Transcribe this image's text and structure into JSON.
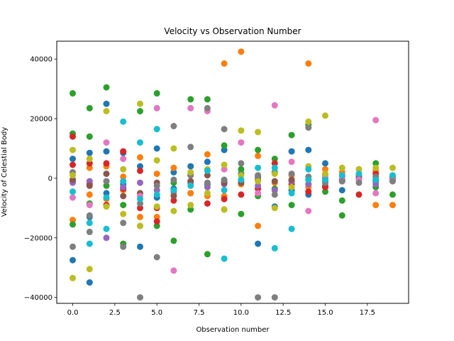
{
  "chart_data": {
    "type": "scatter",
    "title": "Velocity vs Observation Number",
    "xlabel": "Observation number",
    "ylabel": "Velocity of Celestial Body",
    "xlim": [
      -0.95,
      19.95
    ],
    "ylim": [
      -42000,
      46000
    ],
    "xticks": [
      0.0,
      2.5,
      5.0,
      7.5,
      10.0,
      12.5,
      15.0,
      17.5
    ],
    "xtick_labels": [
      "0.0",
      "2.5",
      "5.0",
      "7.5",
      "10.0",
      "12.5",
      "15.0",
      "17.5"
    ],
    "yticks": [
      -40000,
      -20000,
      0,
      20000,
      40000
    ],
    "ytick_labels": [
      "−40000",
      "−20000",
      "0",
      "20000",
      "40000"
    ],
    "grid": false,
    "legend": false,
    "series": [
      {
        "color": "#1f77b4",
        "points": [
          [
            0,
            -27500
          ],
          [
            0,
            6500
          ],
          [
            0,
            -1000
          ],
          [
            1,
            -35000
          ],
          [
            1,
            8500
          ],
          [
            1,
            -13000
          ],
          [
            2,
            25000
          ],
          [
            2,
            9000
          ],
          [
            2,
            -5000
          ],
          [
            3,
            8500
          ],
          [
            3,
            -2000
          ],
          [
            4,
            -23000
          ],
          [
            4,
            4000
          ],
          [
            5,
            10000
          ],
          [
            5,
            -6500
          ],
          [
            6,
            -3500
          ],
          [
            6,
            2000
          ],
          [
            7,
            4000
          ],
          [
            7,
            -5000
          ],
          [
            8,
            5500
          ],
          [
            8,
            -2000
          ],
          [
            9,
            9500
          ],
          [
            9,
            -1000
          ],
          [
            10,
            1500
          ],
          [
            11,
            -22000
          ],
          [
            11,
            500
          ],
          [
            12,
            -9500
          ],
          [
            12,
            2000
          ],
          [
            13,
            9000
          ],
          [
            13,
            -4000
          ],
          [
            14,
            9500
          ],
          [
            14,
            -5500
          ],
          [
            15,
            5000
          ],
          [
            15,
            -2500
          ],
          [
            16,
            -4000
          ],
          [
            17,
            0
          ],
          [
            18,
            -1000
          ],
          [
            19,
            -500
          ]
        ]
      },
      {
        "color": "#ff7f0e",
        "points": [
          [
            0,
            -14000
          ],
          [
            0,
            -500
          ],
          [
            1,
            -5500
          ],
          [
            1,
            3500
          ],
          [
            2,
            -7000
          ],
          [
            2,
            4000
          ],
          [
            3,
            -4000
          ],
          [
            3,
            500
          ],
          [
            4,
            7000
          ],
          [
            4,
            -13000
          ],
          [
            5,
            -13000
          ],
          [
            5,
            1500
          ],
          [
            6,
            -5500
          ],
          [
            6,
            3500
          ],
          [
            7,
            -5000
          ],
          [
            8,
            8000
          ],
          [
            8,
            -6000
          ],
          [
            9,
            38500
          ],
          [
            9,
            -6000
          ],
          [
            10,
            42500
          ],
          [
            10,
            -2000
          ],
          [
            11,
            -16000
          ],
          [
            11,
            7500
          ],
          [
            12,
            -1500
          ],
          [
            13,
            1000
          ],
          [
            14,
            38500
          ],
          [
            14,
            -3000
          ],
          [
            15,
            3000
          ],
          [
            16,
            2000
          ],
          [
            17,
            3000
          ],
          [
            18,
            -9000
          ],
          [
            18,
            2500
          ],
          [
            19,
            -9000
          ]
        ]
      },
      {
        "color": "#2ca02c",
        "points": [
          [
            0,
            28500
          ],
          [
            0,
            15000
          ],
          [
            0,
            -15500
          ],
          [
            1,
            23500
          ],
          [
            1,
            14000
          ],
          [
            1,
            -8500
          ],
          [
            2,
            30500
          ],
          [
            2,
            -2500
          ],
          [
            3,
            -22000
          ],
          [
            3,
            -9000
          ],
          [
            4,
            22500
          ],
          [
            4,
            -16000
          ],
          [
            5,
            28500
          ],
          [
            5,
            -16000
          ],
          [
            6,
            -21000
          ],
          [
            6,
            -1500
          ],
          [
            7,
            26500
          ],
          [
            7,
            -10500
          ],
          [
            8,
            26500
          ],
          [
            8,
            -25500
          ],
          [
            9,
            11000
          ],
          [
            9,
            -10500
          ],
          [
            10,
            -12000
          ],
          [
            10,
            3000
          ],
          [
            11,
            9500
          ],
          [
            11,
            -6000
          ],
          [
            12,
            6500
          ],
          [
            12,
            -3500
          ],
          [
            13,
            14500
          ],
          [
            13,
            -9000
          ],
          [
            14,
            18000
          ],
          [
            14,
            -2000
          ],
          [
            15,
            -4500
          ],
          [
            16,
            -12500
          ],
          [
            16,
            -7500
          ],
          [
            17,
            1000
          ],
          [
            18,
            5000
          ],
          [
            18,
            -3000
          ],
          [
            19,
            -5500
          ]
        ]
      },
      {
        "color": "#d62728",
        "points": [
          [
            0,
            14000
          ],
          [
            0,
            4500
          ],
          [
            1,
            -2000
          ],
          [
            1,
            5000
          ],
          [
            2,
            5000
          ],
          [
            2,
            -9000
          ],
          [
            3,
            9000
          ],
          [
            3,
            -3500
          ],
          [
            4,
            -10000
          ],
          [
            4,
            2500
          ],
          [
            5,
            -10000
          ],
          [
            5,
            -14500
          ],
          [
            6,
            -7500
          ],
          [
            7,
            1000
          ],
          [
            8,
            -8500
          ],
          [
            9,
            -7000
          ],
          [
            10,
            -5500
          ],
          [
            11,
            -3500
          ],
          [
            12,
            5000
          ],
          [
            13,
            -2000
          ],
          [
            14,
            -4500
          ],
          [
            15,
            -3000
          ],
          [
            16,
            -1000
          ],
          [
            17,
            -5500
          ],
          [
            18,
            1500
          ],
          [
            19,
            0
          ]
        ]
      },
      {
        "color": "#9467bd",
        "points": [
          [
            0,
            -1500
          ],
          [
            1,
            -1000
          ],
          [
            2,
            -20000
          ],
          [
            3,
            -3000
          ],
          [
            4,
            -1500
          ],
          [
            5,
            -4000
          ],
          [
            6,
            -4500
          ],
          [
            7,
            -1500
          ],
          [
            8,
            -3000
          ],
          [
            9,
            -2000
          ],
          [
            10,
            -1000
          ],
          [
            11,
            -2500
          ],
          [
            12,
            -4000
          ],
          [
            13,
            -1000
          ],
          [
            14,
            -2000
          ],
          [
            15,
            -1000
          ],
          [
            16,
            -500
          ],
          [
            17,
            500
          ],
          [
            18,
            -2000
          ],
          [
            19,
            -1000
          ]
        ]
      },
      {
        "color": "#8c564b",
        "points": [
          [
            0,
            -500
          ],
          [
            1,
            -2500
          ],
          [
            2,
            1500
          ],
          [
            3,
            -6000
          ],
          [
            4,
            -5000
          ],
          [
            5,
            -1500
          ],
          [
            6,
            -6000
          ],
          [
            7,
            -1000
          ],
          [
            8,
            1000
          ],
          [
            9,
            -1500
          ],
          [
            10,
            -1500
          ],
          [
            11,
            -500
          ],
          [
            12,
            -1000
          ],
          [
            13,
            -500
          ],
          [
            14,
            -500
          ],
          [
            15,
            0
          ],
          [
            16,
            500
          ],
          [
            17,
            0
          ],
          [
            18,
            -500
          ],
          [
            19,
            500
          ]
        ]
      },
      {
        "color": "#e377c2",
        "points": [
          [
            0,
            -6500
          ],
          [
            1,
            -9000
          ],
          [
            2,
            12000
          ],
          [
            3,
            6500
          ],
          [
            4,
            -6000
          ],
          [
            5,
            23500
          ],
          [
            6,
            -31000
          ],
          [
            7,
            23500
          ],
          [
            8,
            22500
          ],
          [
            9,
            3000
          ],
          [
            10,
            12000
          ],
          [
            11,
            -5000
          ],
          [
            12,
            24500
          ],
          [
            13,
            5500
          ],
          [
            14,
            -11000
          ],
          [
            15,
            1000
          ],
          [
            16,
            500
          ],
          [
            17,
            -500
          ],
          [
            18,
            19500
          ],
          [
            18,
            -5000
          ],
          [
            19,
            -500
          ]
        ]
      },
      {
        "color": "#7f7f7f",
        "points": [
          [
            0,
            -23000
          ],
          [
            0,
            2000
          ],
          [
            1,
            -18000
          ],
          [
            1,
            -12500
          ],
          [
            2,
            -1000
          ],
          [
            3,
            -23000
          ],
          [
            3,
            -15000
          ],
          [
            4,
            -40000
          ],
          [
            4,
            -8500
          ],
          [
            5,
            -26500
          ],
          [
            5,
            -2500
          ],
          [
            6,
            17500
          ],
          [
            6,
            -500
          ],
          [
            7,
            10500
          ],
          [
            7,
            1000
          ],
          [
            8,
            23500
          ],
          [
            8,
            -1500
          ],
          [
            9,
            16500
          ],
          [
            9,
            -500
          ],
          [
            10,
            5000
          ],
          [
            11,
            -40000
          ],
          [
            11,
            1000
          ],
          [
            12,
            -40000
          ],
          [
            12,
            -5500
          ],
          [
            13,
            1500
          ],
          [
            14,
            17000
          ],
          [
            14,
            500
          ],
          [
            15,
            -1500
          ],
          [
            16,
            -1000
          ],
          [
            17,
            -1500
          ],
          [
            18,
            500
          ],
          [
            19,
            -1000
          ]
        ]
      },
      {
        "color": "#bcbd22",
        "points": [
          [
            0,
            -33500
          ],
          [
            0,
            9500
          ],
          [
            0,
            1000
          ],
          [
            1,
            -30500
          ],
          [
            1,
            6500
          ],
          [
            2,
            22500
          ],
          [
            2,
            -9500
          ],
          [
            3,
            -12000
          ],
          [
            3,
            3000
          ],
          [
            4,
            25000
          ],
          [
            4,
            -16000
          ],
          [
            5,
            -9500
          ],
          [
            5,
            6000
          ],
          [
            6,
            10000
          ],
          [
            6,
            -11000
          ],
          [
            7,
            -9000
          ],
          [
            7,
            2000
          ],
          [
            8,
            -5000
          ],
          [
            8,
            3000
          ],
          [
            9,
            -10500
          ],
          [
            9,
            4500
          ],
          [
            10,
            16000
          ],
          [
            10,
            1000
          ],
          [
            11,
            15500
          ],
          [
            11,
            -1000
          ],
          [
            12,
            -10000
          ],
          [
            12,
            1500
          ],
          [
            13,
            -3000
          ],
          [
            14,
            19000
          ],
          [
            14,
            4000
          ],
          [
            15,
            21000
          ],
          [
            15,
            1500
          ],
          [
            16,
            3500
          ],
          [
            17,
            3000
          ],
          [
            18,
            3500
          ],
          [
            19,
            3500
          ]
        ]
      },
      {
        "color": "#17becf",
        "points": [
          [
            0,
            -4500
          ],
          [
            1,
            -22000
          ],
          [
            1,
            -15000
          ],
          [
            2,
            -17000
          ],
          [
            2,
            -6500
          ],
          [
            3,
            19000
          ],
          [
            3,
            -1000
          ],
          [
            4,
            12000
          ],
          [
            4,
            -7000
          ],
          [
            5,
            16500
          ],
          [
            5,
            -5500
          ],
          [
            6,
            -4000
          ],
          [
            7,
            -2500
          ],
          [
            8,
            2500
          ],
          [
            9,
            -27000
          ],
          [
            9,
            -4000
          ],
          [
            10,
            -500
          ],
          [
            11,
            3500
          ],
          [
            12,
            -23500
          ],
          [
            12,
            3500
          ],
          [
            13,
            -17000
          ],
          [
            13,
            -5000
          ],
          [
            14,
            3000
          ],
          [
            14,
            -500
          ],
          [
            15,
            -500
          ],
          [
            16,
            1000
          ],
          [
            17,
            1500
          ],
          [
            18,
            -500
          ],
          [
            19,
            1000
          ]
        ]
      }
    ]
  }
}
